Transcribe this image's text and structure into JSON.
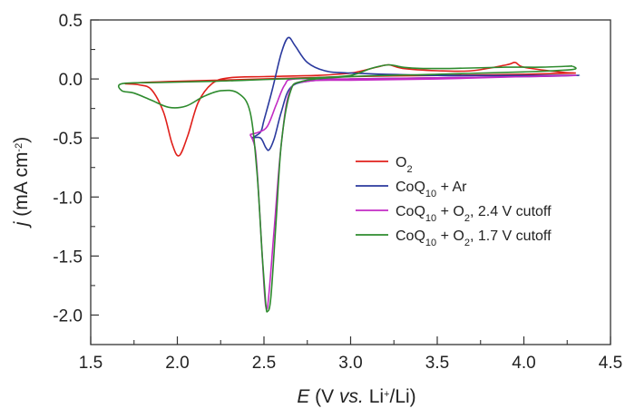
{
  "chart_data": {
    "type": "line",
    "xlabel_parts": {
      "var": "E",
      "open": " (V ",
      "vs": "vs.",
      "li": " Li",
      "sup": "+",
      "close": "/Li)"
    },
    "ylabel_parts": {
      "var": "j",
      "unit": " (mA cm",
      "sup": "-2",
      "close": ")"
    },
    "xlim": [
      1.5,
      4.5
    ],
    "ylim": [
      -2.25,
      0.5
    ],
    "xticks": [
      "1.5",
      "2.0",
      "2.5",
      "3.0",
      "3.5",
      "4.0",
      "4.5"
    ],
    "yticks": [
      "0.5",
      "0.0",
      "-0.5",
      "-1.0",
      "-1.5",
      "-2.0"
    ],
    "grid": false,
    "legend_position": "right",
    "series": [
      {
        "name_parts": [
          "O",
          "2",
          "",
          "",
          ""
        ],
        "color": "#e0201b",
        "points": [
          [
            4.3,
            0.05
          ],
          [
            4.2,
            0.06
          ],
          [
            4.0,
            0.1
          ],
          [
            3.95,
            0.14
          ],
          [
            3.9,
            0.12
          ],
          [
            3.7,
            0.07
          ],
          [
            3.5,
            0.07
          ],
          [
            3.3,
            0.09
          ],
          [
            3.22,
            0.12
          ],
          [
            3.15,
            0.1
          ],
          [
            3.0,
            0.05
          ],
          [
            2.8,
            0.03
          ],
          [
            2.5,
            0.02
          ],
          [
            2.3,
            0.01
          ],
          [
            2.2,
            -0.04
          ],
          [
            2.12,
            -0.2
          ],
          [
            2.06,
            -0.48
          ],
          [
            2.01,
            -0.65
          ],
          [
            1.97,
            -0.55
          ],
          [
            1.92,
            -0.28
          ],
          [
            1.85,
            -0.09
          ],
          [
            1.78,
            -0.05
          ],
          [
            1.7,
            -0.04
          ],
          [
            1.8,
            -0.03
          ],
          [
            2.0,
            -0.02
          ],
          [
            2.5,
            0.0
          ],
          [
            3.0,
            0.02
          ],
          [
            3.5,
            0.03
          ],
          [
            4.0,
            0.04
          ],
          [
            4.3,
            0.05
          ]
        ]
      },
      {
        "name_parts": [
          "CoQ",
          "10",
          " + Ar",
          "",
          ""
        ],
        "color": "#2b3a9e",
        "points": [
          [
            2.43,
            -0.5
          ],
          [
            2.48,
            -0.45
          ],
          [
            2.5,
            -0.35
          ],
          [
            2.55,
            -0.08
          ],
          [
            2.6,
            0.22
          ],
          [
            2.64,
            0.35
          ],
          [
            2.68,
            0.28
          ],
          [
            2.75,
            0.14
          ],
          [
            2.85,
            0.07
          ],
          [
            3.0,
            0.05
          ],
          [
            3.5,
            0.03
          ],
          [
            4.0,
            0.03
          ],
          [
            4.32,
            0.03
          ],
          [
            4.0,
            0.02
          ],
          [
            3.5,
            0.01
          ],
          [
            3.0,
            0.0
          ],
          [
            2.75,
            -0.02
          ],
          [
            2.65,
            -0.08
          ],
          [
            2.6,
            -0.28
          ],
          [
            2.56,
            -0.5
          ],
          [
            2.53,
            -0.6
          ],
          [
            2.51,
            -0.58
          ],
          [
            2.48,
            -0.5
          ],
          [
            2.43,
            -0.5
          ]
        ]
      },
      {
        "name_parts": [
          "CoQ",
          "10",
          " + O",
          "2",
          ", 2.4 V cutoff"
        ],
        "color": "#c22bc4",
        "points": [
          [
            2.42,
            -0.47
          ],
          [
            2.47,
            -0.45
          ],
          [
            2.52,
            -0.4
          ],
          [
            2.57,
            -0.22
          ],
          [
            2.62,
            -0.05
          ],
          [
            2.68,
            0.0
          ],
          [
            3.0,
            0.0
          ],
          [
            3.5,
            0.01
          ],
          [
            4.0,
            0.02
          ],
          [
            4.3,
            0.03
          ],
          [
            4.0,
            0.02
          ],
          [
            3.5,
            0.0
          ],
          [
            3.0,
            -0.01
          ],
          [
            2.75,
            -0.02
          ],
          [
            2.65,
            -0.1
          ],
          [
            2.6,
            -0.55
          ],
          [
            2.56,
            -1.25
          ],
          [
            2.53,
            -1.8
          ],
          [
            2.515,
            -1.95
          ],
          [
            2.5,
            -1.75
          ],
          [
            2.47,
            -1.0
          ],
          [
            2.45,
            -0.6
          ],
          [
            2.42,
            -0.47
          ]
        ]
      },
      {
        "name_parts": [
          "CoQ",
          "10",
          " + O",
          "2",
          ", 1.7 V cutoff"
        ],
        "color": "#2e8b2e",
        "points": [
          [
            4.28,
            0.11
          ],
          [
            4.1,
            0.1
          ],
          [
            3.9,
            0.1
          ],
          [
            3.6,
            0.09
          ],
          [
            3.4,
            0.09
          ],
          [
            3.3,
            0.1
          ],
          [
            3.22,
            0.12
          ],
          [
            3.12,
            0.09
          ],
          [
            3.0,
            0.03
          ],
          [
            2.8,
            0.01
          ],
          [
            2.6,
            0.0
          ],
          [
            2.4,
            -0.01
          ],
          [
            2.2,
            -0.02
          ],
          [
            1.9,
            -0.03
          ],
          [
            1.68,
            -0.04
          ],
          [
            1.68,
            -0.1
          ],
          [
            1.75,
            -0.12
          ],
          [
            1.85,
            -0.18
          ],
          [
            1.95,
            -0.24
          ],
          [
            2.05,
            -0.23
          ],
          [
            2.15,
            -0.15
          ],
          [
            2.25,
            -0.1
          ],
          [
            2.35,
            -0.12
          ],
          [
            2.42,
            -0.28
          ],
          [
            2.46,
            -0.8
          ],
          [
            2.49,
            -1.5
          ],
          [
            2.51,
            -1.9
          ],
          [
            2.52,
            -1.97
          ],
          [
            2.54,
            -1.85
          ],
          [
            2.57,
            -1.2
          ],
          [
            2.6,
            -0.55
          ],
          [
            2.65,
            -0.12
          ],
          [
            2.72,
            -0.02
          ],
          [
            3.0,
            0.02
          ],
          [
            3.5,
            0.04
          ],
          [
            4.0,
            0.06
          ],
          [
            4.28,
            0.08
          ],
          [
            4.28,
            0.11
          ]
        ]
      }
    ]
  }
}
